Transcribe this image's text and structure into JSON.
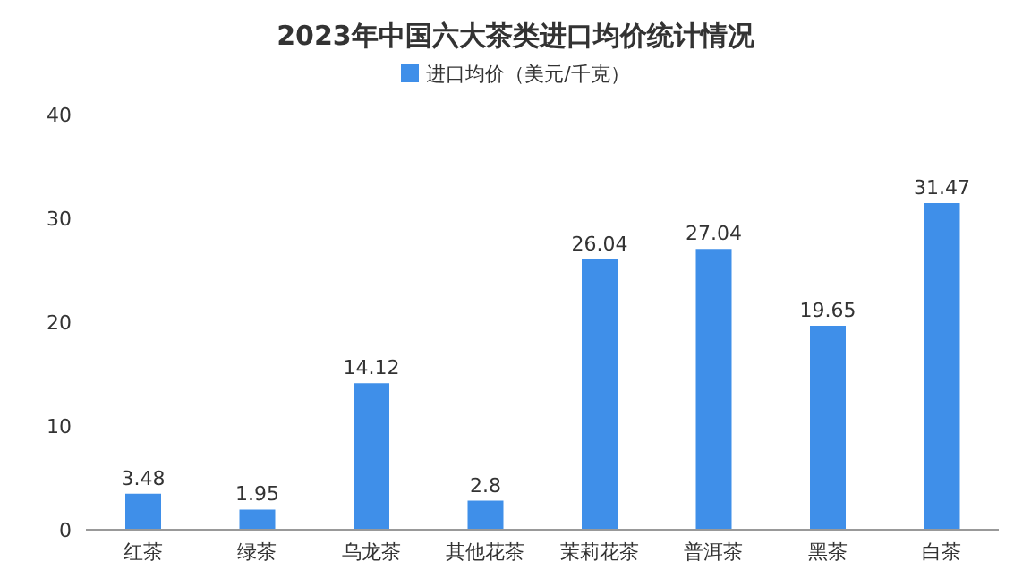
{
  "chart_data": {
    "type": "bar",
    "title": "2023年中国六大茶类进口均价统计情况",
    "categories": [
      "红茶",
      "绿茶",
      "乌龙茶",
      "其他花茶",
      "茉莉花茶",
      "普洱茶",
      "黑茶",
      "白茶"
    ],
    "series": [
      {
        "name": "进口均价（美元/千克）",
        "color": "#3f8fe9",
        "values": [
          3.48,
          1.95,
          14.12,
          2.8,
          26.04,
          27.04,
          19.65,
          31.47
        ]
      }
    ],
    "ylim": [
      0,
      40
    ],
    "yticks": [
      0,
      10,
      20,
      30,
      40
    ],
    "grid": false,
    "legend": "top",
    "data_labels": true
  }
}
